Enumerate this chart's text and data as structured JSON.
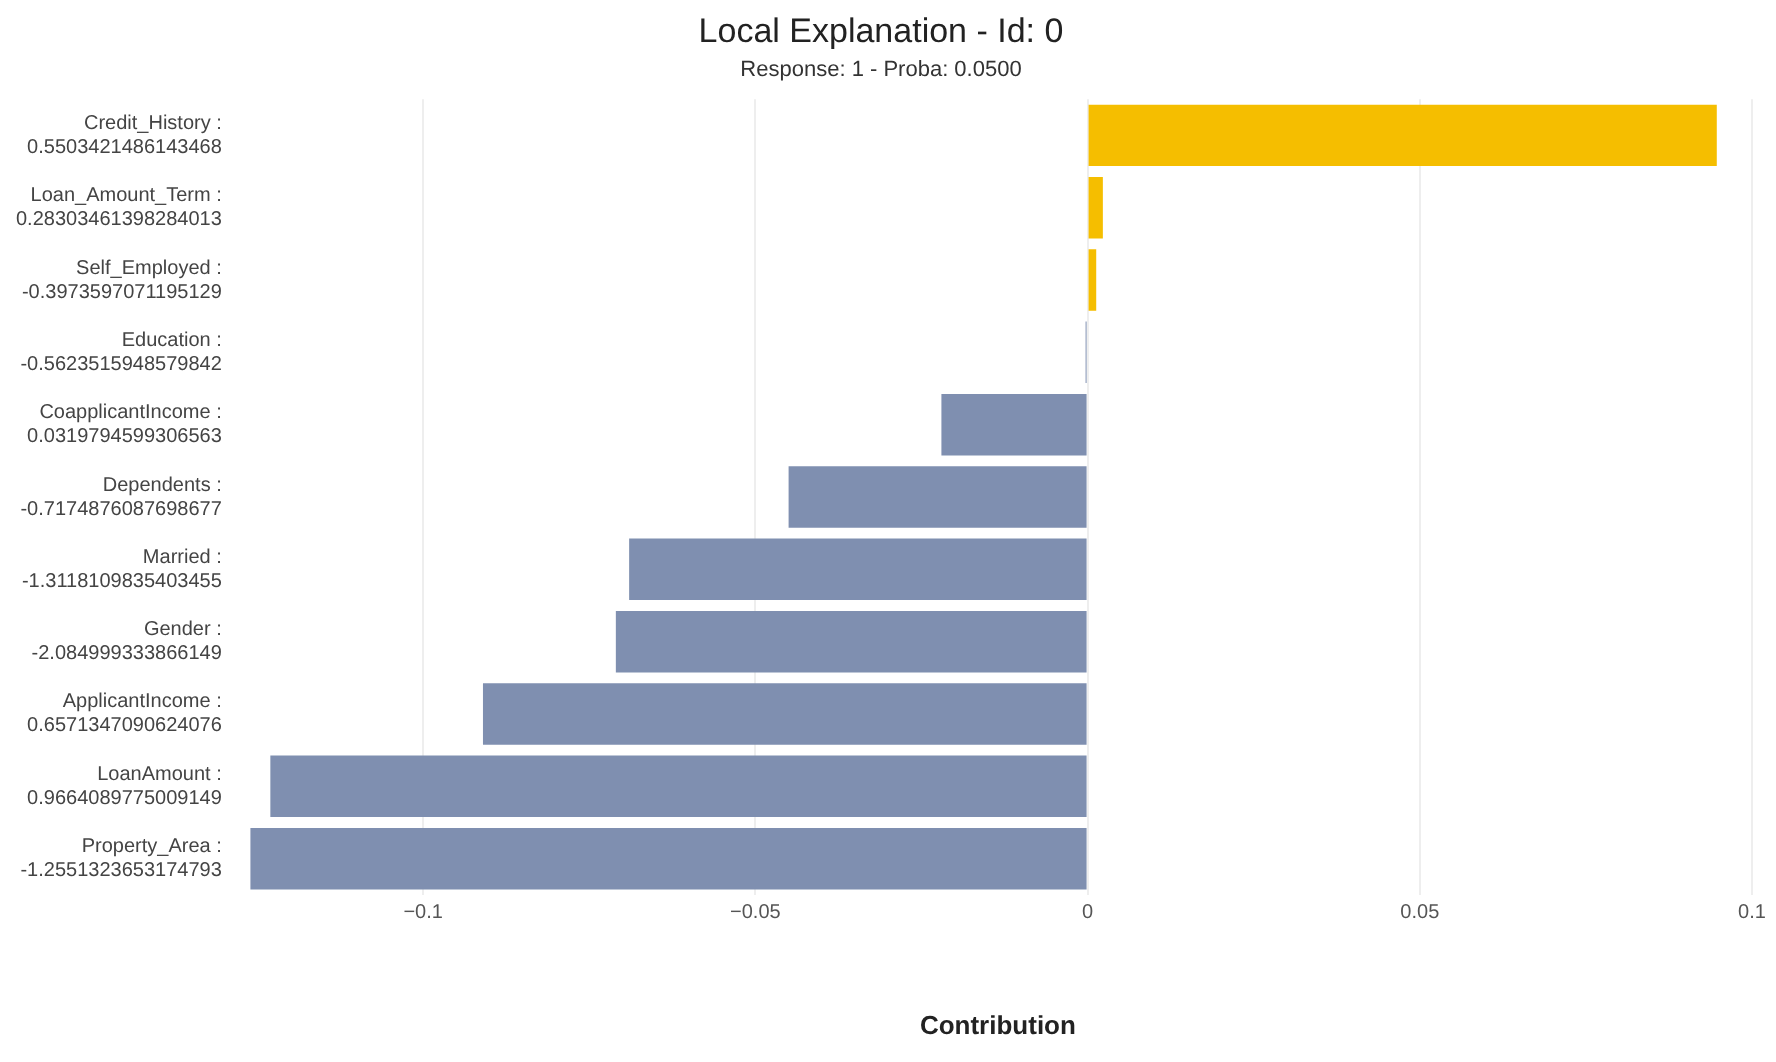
{
  "chart_data": {
    "type": "bar",
    "orientation": "horizontal",
    "title": "Local Explanation - Id: 0",
    "subtitle": "Response: 1 - Proba: 0.0500",
    "xlabel": "Contribution",
    "categories": [
      "Credit_History :\n0.5503421486143468",
      "Loan_Amount_Term :\n0.28303461398284013",
      "Self_Employed :\n-0.3973597071195129",
      "Education :\n-0.5623515948579842",
      "CoapplicantIncome :\n0.0319794599306563",
      "Dependents :\n-0.7174876087698677",
      "Married :\n-1.3118109835403455",
      "Gender :\n-2.084999333866149",
      "ApplicantIncome :\n0.6571347090624076",
      "LoanAmount :\n0.9664089775009149",
      "Property_Area :\n-1.2551323653174793"
    ],
    "values": [
      0.0947,
      0.0023,
      0.0013,
      -0.0003,
      -0.022,
      -0.045,
      -0.069,
      -0.071,
      -0.091,
      -0.123,
      -0.126
    ],
    "colors": [
      "#f5be00",
      "#f5be00",
      "#f5be00",
      "#7f8fb0",
      "#7f8fb0",
      "#7f8fb0",
      "#7f8fb0",
      "#7f8fb0",
      "#7f8fb0",
      "#7f8fb0",
      "#7f8fb0"
    ],
    "xlim": [
      -0.127,
      0.1
    ],
    "xticks": [
      -0.1,
      -0.05,
      0,
      0.05,
      0.1
    ],
    "grid": "x",
    "legend": false
  }
}
